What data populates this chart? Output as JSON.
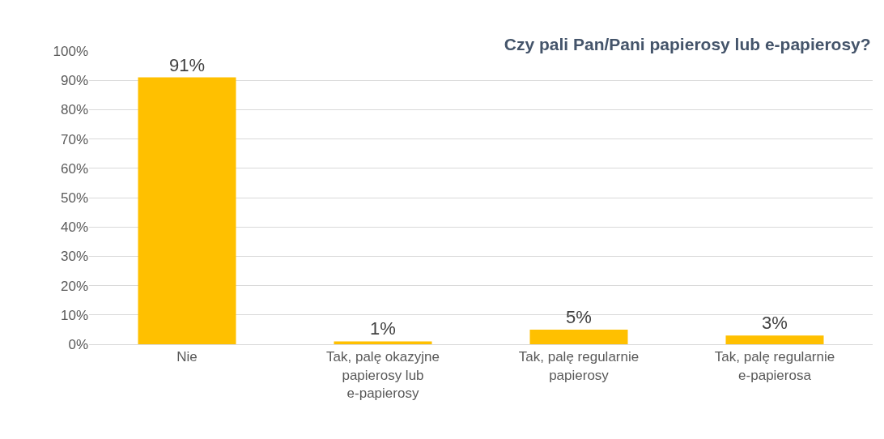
{
  "chart_data": {
    "type": "bar",
    "title": "Czy pali Pan/Pani papierosy lub e-papierosy?",
    "categories": [
      "Nie",
      "Tak, palę okazyjne papierosy lub e-papierosy",
      "Tak, palę regularnie papierosy",
      "Tak, palę regularnie e-papierosa"
    ],
    "values": [
      91,
      1,
      5,
      3
    ],
    "value_labels": [
      "91%",
      "1%",
      "5%",
      "3%"
    ],
    "color": "#ffc000",
    "ylim": [
      0,
      100
    ],
    "yticks": [
      {
        "value": 0,
        "label": "0%"
      },
      {
        "value": 10,
        "label": "10%"
      },
      {
        "value": 20,
        "label": "20%"
      },
      {
        "value": 30,
        "label": "30%"
      },
      {
        "value": 40,
        "label": "40%"
      },
      {
        "value": 50,
        "label": "50%"
      },
      {
        "value": 60,
        "label": "60%"
      },
      {
        "value": 70,
        "label": "70%"
      },
      {
        "value": 80,
        "label": "80%"
      },
      {
        "value": 90,
        "label": "90%"
      },
      {
        "value": 100,
        "label": "100%"
      }
    ],
    "grid": "y"
  }
}
